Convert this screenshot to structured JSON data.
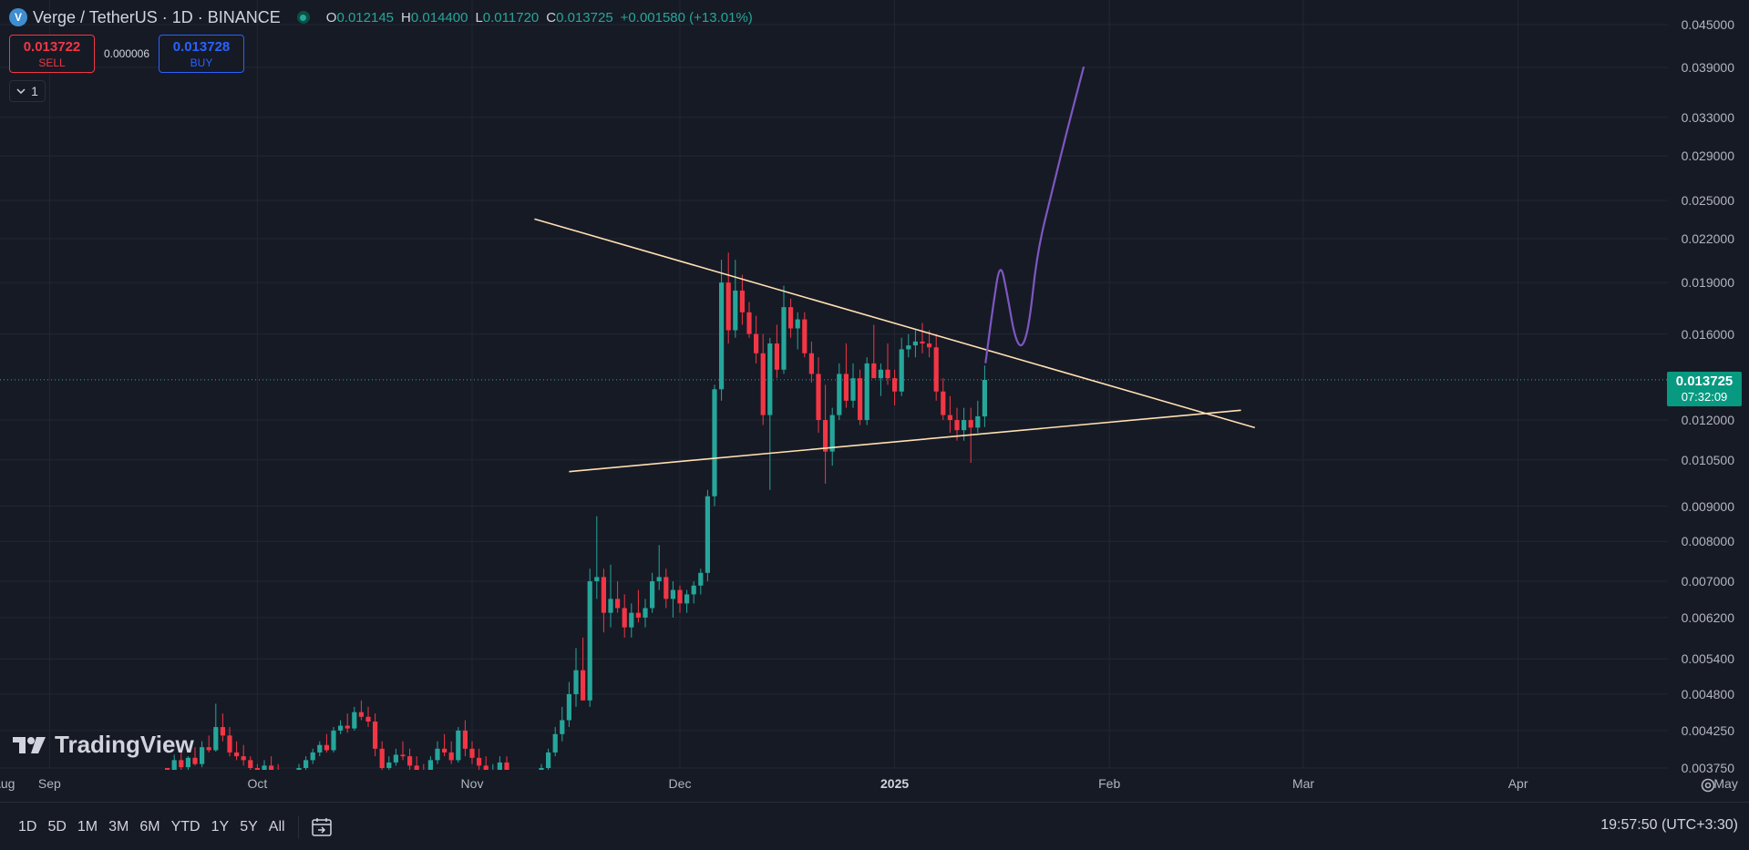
{
  "header": {
    "logo_letter": "V",
    "title": "Verge / TetherUS · 1D · BINANCE",
    "ohlc": [
      {
        "k": "O",
        "v": "0.012145"
      },
      {
        "k": "H",
        "v": "0.014400"
      },
      {
        "k": "L",
        "v": "0.011720"
      },
      {
        "k": "C",
        "v": "0.013725"
      },
      {
        "k": "",
        "v": "+0.001580 (+13.01%)"
      }
    ]
  },
  "trade": {
    "sell_price": "0.013722",
    "sell_label": "SELL",
    "spread": "0.000006",
    "buy_price": "0.013728",
    "buy_label": "BUY"
  },
  "indicators_count": "1",
  "price_axis": {
    "ticks": [
      "0.045000",
      "0.039000",
      "0.033000",
      "0.029000",
      "0.025000",
      "0.022000",
      "0.019000",
      "0.016000",
      "0.012000",
      "0.010500",
      "0.009000",
      "0.008000",
      "0.007000",
      "0.006200",
      "0.005400",
      "0.004800",
      "0.004250",
      "0.003750"
    ],
    "current_price": "0.013725",
    "countdown": "07:32:09"
  },
  "time_axis": {
    "ticks": [
      "Aug",
      "Sep",
      "Oct",
      "Nov",
      "Dec",
      "2025",
      "Feb",
      "Mar",
      "Apr",
      "May"
    ],
    "bold_tick": "2025"
  },
  "watermark": "TradingView",
  "bottom_bar": {
    "ranges": [
      "1D",
      "5D",
      "1M",
      "3M",
      "6M",
      "YTD",
      "1Y",
      "5Y",
      "All"
    ],
    "clock": "19:57:50 (UTC+3:30)"
  },
  "colors": {
    "up": "#26a69a",
    "down": "#f23645",
    "trendline": "#ffe0b2",
    "drawing": "#7e57c2",
    "background": "#161a25"
  },
  "chart_data": {
    "type": "candlestick",
    "symbol": "XVGUSDT",
    "interval": "1D",
    "scale": "log",
    "candles_ohlc": [
      [
        0.00375,
        0.00372,
        0.00362,
        0.00368
      ],
      [
        0.00368,
        0.00392,
        0.00365,
        0.00385
      ],
      [
        0.00385,
        0.00398,
        0.00372,
        0.00376
      ],
      [
        0.00376,
        0.0039,
        0.0037,
        0.00388
      ],
      [
        0.00388,
        0.00402,
        0.00378,
        0.0038
      ],
      [
        0.0038,
        0.0041,
        0.00376,
        0.00402
      ],
      [
        0.00402,
        0.00418,
        0.00395,
        0.00398
      ],
      [
        0.00398,
        0.00465,
        0.00396,
        0.0043
      ],
      [
        0.0043,
        0.0045,
        0.0041,
        0.00418
      ],
      [
        0.00418,
        0.0043,
        0.0039,
        0.00395
      ],
      [
        0.00395,
        0.0041,
        0.00385,
        0.0039
      ],
      [
        0.0039,
        0.00405,
        0.00378,
        0.00385
      ],
      [
        0.00385,
        0.0039,
        0.0037,
        0.00375
      ],
      [
        0.00375,
        0.0038,
        0.00364,
        0.0037
      ],
      [
        0.0037,
        0.00385,
        0.00362,
        0.00378
      ],
      [
        0.00378,
        0.0039,
        0.00365,
        0.0037
      ],
      [
        0.0037,
        0.0038,
        0.00358,
        0.00365
      ],
      [
        0.00365,
        0.00372,
        0.00352,
        0.0036
      ],
      [
        0.0036,
        0.0037,
        0.0035,
        0.00366
      ],
      [
        0.00366,
        0.0038,
        0.0036,
        0.00375
      ],
      [
        0.00375,
        0.0039,
        0.0037,
        0.00385
      ],
      [
        0.00385,
        0.004,
        0.0038,
        0.00395
      ],
      [
        0.00395,
        0.0041,
        0.0039,
        0.00405
      ],
      [
        0.00405,
        0.0042,
        0.00395,
        0.00398
      ],
      [
        0.00398,
        0.0043,
        0.00395,
        0.00425
      ],
      [
        0.00425,
        0.0044,
        0.0042,
        0.00432
      ],
      [
        0.00432,
        0.0045,
        0.00422,
        0.00428
      ],
      [
        0.00428,
        0.0046,
        0.00425,
        0.00452
      ],
      [
        0.00452,
        0.0047,
        0.0044,
        0.00445
      ],
      [
        0.00445,
        0.0046,
        0.0043,
        0.00438
      ],
      [
        0.00438,
        0.0045,
        0.0039,
        0.004
      ],
      [
        0.004,
        0.0041,
        0.0037,
        0.00375
      ],
      [
        0.00375,
        0.0039,
        0.0036,
        0.00382
      ],
      [
        0.00382,
        0.004,
        0.00378,
        0.00392
      ],
      [
        0.00392,
        0.0041,
        0.00385,
        0.0039
      ],
      [
        0.0039,
        0.004,
        0.0037,
        0.00378
      ],
      [
        0.00378,
        0.0039,
        0.0036,
        0.00372
      ],
      [
        0.00372,
        0.0038,
        0.0036,
        0.00368
      ],
      [
        0.00368,
        0.0039,
        0.00364,
        0.00385
      ],
      [
        0.00385,
        0.0041,
        0.0038,
        0.004
      ],
      [
        0.004,
        0.0042,
        0.0039,
        0.00395
      ],
      [
        0.00395,
        0.0041,
        0.0038,
        0.00385
      ],
      [
        0.00385,
        0.0043,
        0.00382,
        0.00425
      ],
      [
        0.00425,
        0.0044,
        0.0039,
        0.004
      ],
      [
        0.004,
        0.0041,
        0.0038,
        0.00388
      ],
      [
        0.00388,
        0.004,
        0.0037,
        0.00378
      ],
      [
        0.00378,
        0.0039,
        0.00362,
        0.00368
      ],
      [
        0.00368,
        0.0038,
        0.00358,
        0.00372
      ],
      [
        0.00372,
        0.0039,
        0.00365,
        0.00382
      ],
      [
        0.00382,
        0.0039,
        0.0036,
        0.00365
      ],
      [
        0.00365,
        0.0037,
        0.00348,
        0.00355
      ],
      [
        0.00355,
        0.0036,
        0.00345,
        0.0035
      ],
      [
        0.0035,
        0.0036,
        0.00346,
        0.00356
      ],
      [
        0.00356,
        0.0037,
        0.0035,
        0.00362
      ],
      [
        0.00362,
        0.0038,
        0.00358,
        0.00375
      ],
      [
        0.00375,
        0.004,
        0.0037,
        0.00395
      ],
      [
        0.00395,
        0.0043,
        0.0039,
        0.0042
      ],
      [
        0.0042,
        0.0046,
        0.0041,
        0.0044
      ],
      [
        0.0044,
        0.005,
        0.0043,
        0.0048
      ],
      [
        0.0048,
        0.0056,
        0.0046,
        0.0052
      ],
      [
        0.0052,
        0.0058,
        0.0049,
        0.0047
      ],
      [
        0.0047,
        0.0073,
        0.0046,
        0.007
      ],
      [
        0.007,
        0.0087,
        0.0066,
        0.0071
      ],
      [
        0.0071,
        0.0073,
        0.0059,
        0.0063
      ],
      [
        0.0063,
        0.0074,
        0.006,
        0.0066
      ],
      [
        0.0066,
        0.007,
        0.0063,
        0.0064
      ],
      [
        0.0064,
        0.0067,
        0.0058,
        0.006
      ],
      [
        0.006,
        0.0065,
        0.0058,
        0.0063
      ],
      [
        0.0063,
        0.0068,
        0.0061,
        0.0062
      ],
      [
        0.0062,
        0.0066,
        0.006,
        0.0064
      ],
      [
        0.0064,
        0.0072,
        0.0063,
        0.007
      ],
      [
        0.007,
        0.0079,
        0.0068,
        0.0071
      ],
      [
        0.0071,
        0.0073,
        0.0064,
        0.0066
      ],
      [
        0.0066,
        0.007,
        0.0062,
        0.0068
      ],
      [
        0.0068,
        0.0069,
        0.0063,
        0.0065
      ],
      [
        0.0065,
        0.0068,
        0.0063,
        0.0067
      ],
      [
        0.0067,
        0.007,
        0.0065,
        0.0069
      ],
      [
        0.0069,
        0.0073,
        0.0067,
        0.0072
      ],
      [
        0.0072,
        0.0095,
        0.007,
        0.0093
      ],
      [
        0.0093,
        0.0135,
        0.009,
        0.0133
      ],
      [
        0.0133,
        0.0205,
        0.0128,
        0.019
      ],
      [
        0.019,
        0.021,
        0.0155,
        0.0162
      ],
      [
        0.0162,
        0.0205,
        0.0158,
        0.0185
      ],
      [
        0.0185,
        0.0195,
        0.0165,
        0.0172
      ],
      [
        0.0172,
        0.0178,
        0.0158,
        0.016
      ],
      [
        0.016,
        0.017,
        0.0145,
        0.015
      ],
      [
        0.015,
        0.016,
        0.0118,
        0.0122
      ],
      [
        0.0122,
        0.0158,
        0.0095,
        0.0155
      ],
      [
        0.0155,
        0.0165,
        0.0138,
        0.0142
      ],
      [
        0.0142,
        0.0188,
        0.014,
        0.0175
      ],
      [
        0.0175,
        0.018,
        0.0158,
        0.0163
      ],
      [
        0.0163,
        0.0172,
        0.0152,
        0.0168
      ],
      [
        0.0168,
        0.0172,
        0.0148,
        0.015
      ],
      [
        0.015,
        0.0156,
        0.0136,
        0.014
      ],
      [
        0.014,
        0.0148,
        0.0115,
        0.012
      ],
      [
        0.012,
        0.0135,
        0.0097,
        0.0108
      ],
      [
        0.0108,
        0.0125,
        0.0103,
        0.0122
      ],
      [
        0.0122,
        0.0145,
        0.012,
        0.014
      ],
      [
        0.014,
        0.0155,
        0.0125,
        0.0128
      ],
      [
        0.0128,
        0.0145,
        0.0125,
        0.0138
      ],
      [
        0.0138,
        0.0142,
        0.0118,
        0.012
      ],
      [
        0.012,
        0.0148,
        0.0118,
        0.0145
      ],
      [
        0.0145,
        0.0165,
        0.014,
        0.0138
      ],
      [
        0.0138,
        0.0145,
        0.013,
        0.0142
      ],
      [
        0.0142,
        0.0155,
        0.0135,
        0.0138
      ],
      [
        0.0138,
        0.0142,
        0.0126,
        0.0132
      ],
      [
        0.0132,
        0.0158,
        0.013,
        0.0152
      ],
      [
        0.0152,
        0.016,
        0.0148,
        0.0154
      ],
      [
        0.0154,
        0.0162,
        0.0148,
        0.0156
      ],
      [
        0.0156,
        0.0166,
        0.015,
        0.0155
      ],
      [
        0.0155,
        0.0162,
        0.0148,
        0.0153
      ],
      [
        0.0153,
        0.016,
        0.0128,
        0.0132
      ],
      [
        0.0132,
        0.0138,
        0.012,
        0.0122
      ],
      [
        0.0122,
        0.013,
        0.0115,
        0.012
      ],
      [
        0.012,
        0.0125,
        0.0112,
        0.0116
      ],
      [
        0.0116,
        0.0125,
        0.0112,
        0.012
      ],
      [
        0.012,
        0.0125,
        0.0104,
        0.0117
      ],
      [
        0.0117,
        0.0128,
        0.0115,
        0.01215
      ],
      [
        0.012145,
        0.0144,
        0.01172,
        0.013725
      ]
    ],
    "drawings": [
      {
        "type": "trendline",
        "name": "descending-resistance",
        "from": [
          "2024-11-10",
          0.0235
        ],
        "to": [
          "2025-02-22",
          0.0117
        ]
      },
      {
        "type": "trendline",
        "name": "ascending-support",
        "from": [
          "2024-11-15",
          0.0101
        ],
        "to": [
          "2025-02-20",
          0.0124
        ]
      },
      {
        "type": "freehand",
        "name": "projection-path",
        "points": [
          [
            0.01455,
            0
          ],
          [
            0.0175,
            1
          ],
          [
            0.0205,
            2
          ],
          [
            0.0182,
            3
          ],
          [
            0.0158,
            4
          ],
          [
            0.0152,
            5
          ],
          [
            0.0165,
            6
          ],
          [
            0.021,
            7
          ],
          [
            0.026,
            9
          ],
          [
            0.032,
            11
          ],
          [
            0.039,
            13
          ]
        ]
      }
    ]
  }
}
